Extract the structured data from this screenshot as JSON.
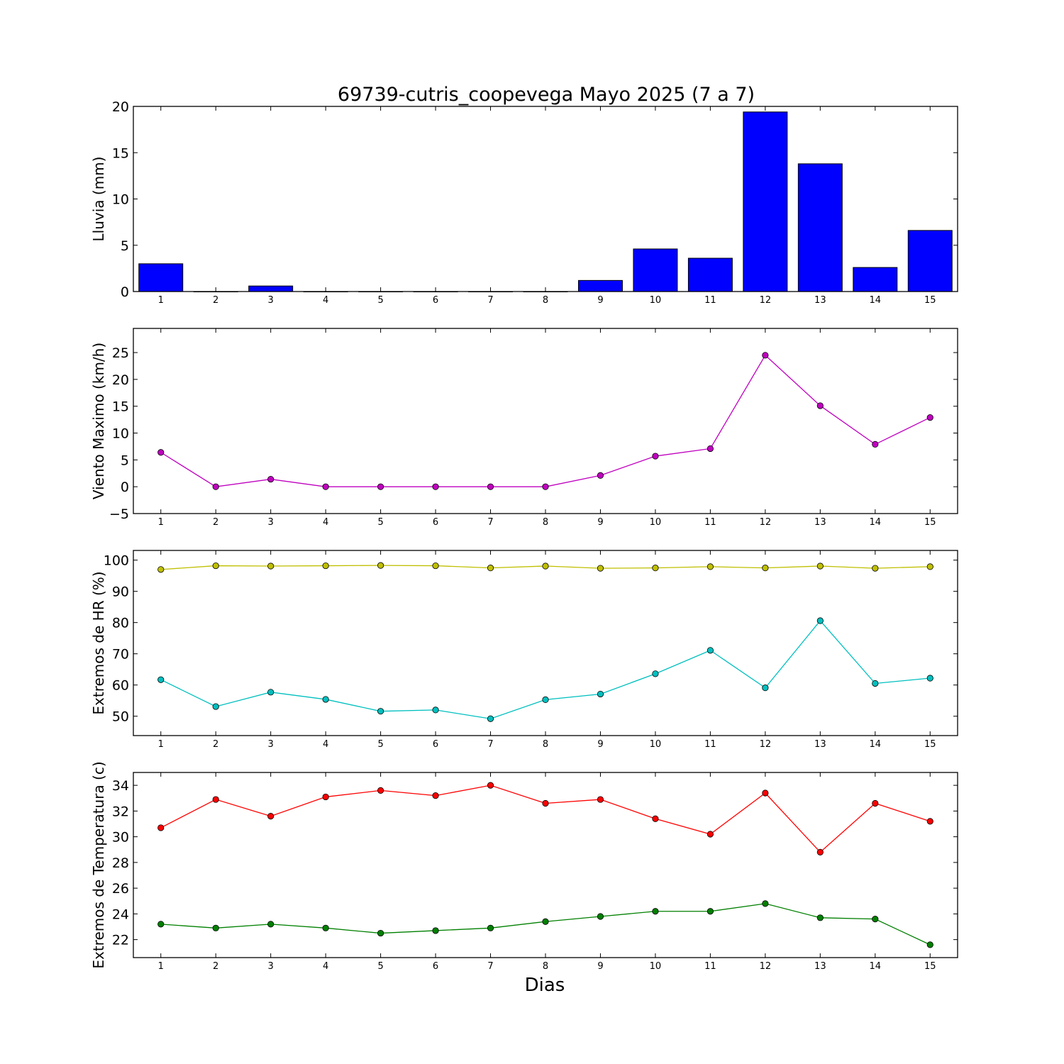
{
  "title": "69739-cutris_coopevega Mayo 2025  (7 a 7)",
  "xlabel": "Dias",
  "colors": {
    "rain": "#0000ff",
    "wind": "#bf00bf",
    "hr_max": "#bfbf00",
    "hr_min": "#00bfbf",
    "temp_max": "#ff0000",
    "temp_min": "#008000"
  },
  "chart_data": [
    {
      "type": "bar",
      "ylabel": "Lluvia (mm)",
      "categories": [
        "1",
        "2",
        "3",
        "4",
        "5",
        "6",
        "7",
        "8",
        "9",
        "10",
        "11",
        "12",
        "13",
        "14",
        "15"
      ],
      "values": [
        3.0,
        0.0,
        0.6,
        0.0,
        0.0,
        0.0,
        0.0,
        0.0,
        1.2,
        4.6,
        3.6,
        19.4,
        13.8,
        2.6,
        6.6
      ],
      "ylim": [
        0,
        20
      ],
      "yticks": [
        "0",
        "5",
        "10",
        "15",
        "20"
      ]
    },
    {
      "type": "line",
      "ylabel": "Viento Maximo (km/h)",
      "x": [
        1,
        2,
        3,
        4,
        5,
        6,
        7,
        8,
        9,
        10,
        11,
        12,
        13,
        14,
        15
      ],
      "series": [
        {
          "values": [
            6.4,
            0.0,
            1.4,
            0.0,
            0.0,
            0.0,
            0.0,
            0.0,
            2.1,
            5.7,
            7.1,
            24.5,
            15.1,
            7.9,
            12.9
          ]
        }
      ],
      "ylim": [
        -5,
        29.5
      ],
      "yticks": [
        "−5",
        "0",
        "5",
        "10",
        "15",
        "20",
        "25"
      ]
    },
    {
      "type": "line",
      "ylabel": "Extremos de HR (%)",
      "x": [
        1,
        2,
        3,
        4,
        5,
        6,
        7,
        8,
        9,
        10,
        11,
        12,
        13,
        14,
        15
      ],
      "series": [
        {
          "values": [
            97.0,
            98.2,
            98.1,
            98.2,
            98.3,
            98.2,
            97.5,
            98.1,
            97.4,
            97.5,
            97.9,
            97.5,
            98.1,
            97.4,
            97.9
          ]
        },
        {
          "values": [
            61.7,
            53.1,
            57.7,
            55.4,
            51.6,
            52.0,
            49.2,
            55.3,
            57.1,
            63.6,
            71.1,
            59.1,
            80.6,
            60.5,
            62.2
          ]
        }
      ],
      "ylim": [
        43.8,
        103.1
      ],
      "yticks": [
        "50",
        "60",
        "70",
        "80",
        "90",
        "100"
      ]
    },
    {
      "type": "line",
      "ylabel": "Extremos de Temperatura (c)",
      "x": [
        1,
        2,
        3,
        4,
        5,
        6,
        7,
        8,
        9,
        10,
        11,
        12,
        13,
        14,
        15
      ],
      "series": [
        {
          "values": [
            30.7,
            32.9,
            31.6,
            33.1,
            33.6,
            33.2,
            34.0,
            32.6,
            32.9,
            31.4,
            30.2,
            33.4,
            28.8,
            32.6,
            31.2
          ]
        },
        {
          "values": [
            23.2,
            22.9,
            23.2,
            22.9,
            22.5,
            22.7,
            22.9,
            23.4,
            23.8,
            24.2,
            24.2,
            24.8,
            23.7,
            23.6,
            21.6
          ]
        }
      ],
      "ylim": [
        20.6,
        35.0
      ],
      "yticks": [
        "22",
        "24",
        "26",
        "28",
        "30",
        "32",
        "34"
      ]
    }
  ]
}
